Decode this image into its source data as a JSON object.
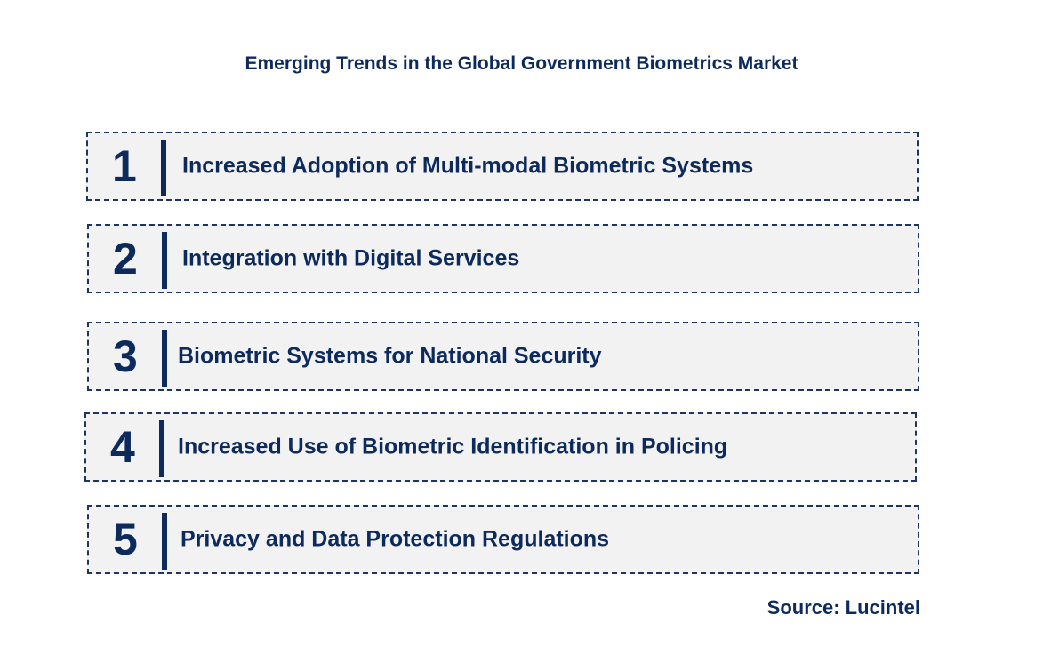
{
  "title": "Emerging Trends in the Global Government Biometrics Market",
  "trends": [
    {
      "number": "1",
      "label": "Increased Adoption of Multi-modal Biometric Systems"
    },
    {
      "number": "2",
      "label": "Integration with Digital Services"
    },
    {
      "number": "3",
      "label": "Biometric Systems for National Security"
    },
    {
      "number": "4",
      "label": "Increased Use of Biometric Identification in Policing"
    },
    {
      "number": "5",
      "label": "Privacy and Data Protection Regulations"
    }
  ],
  "source": "Source: Lucintel",
  "colors": {
    "text": "#0d2a5c",
    "box_fill": "#f2f2f2",
    "box_border": "#1e3560"
  }
}
